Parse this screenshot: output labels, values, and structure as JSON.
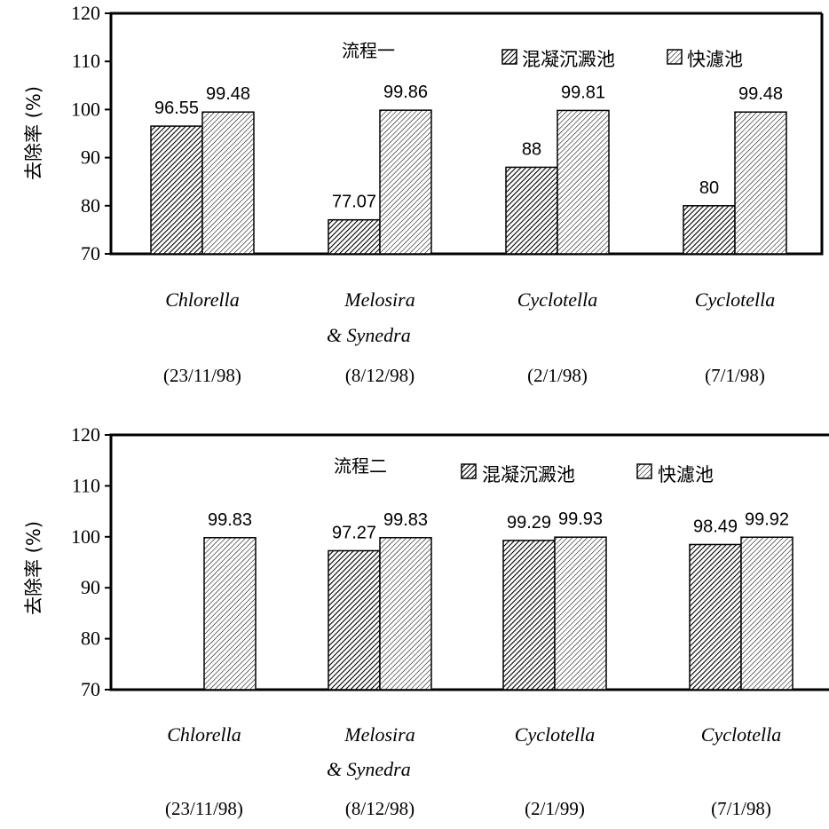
{
  "chart_data": [
    {
      "type": "bar",
      "title": "流程一",
      "ylabel": "去除率 (%)",
      "ylim": [
        70,
        120
      ],
      "yticks": [
        70,
        80,
        90,
        100,
        110,
        120
      ],
      "categories": [
        "Chlorella",
        "Melosira & Synedra",
        "Cyclotella",
        "Cyclotella"
      ],
      "category_lines": [
        [
          "Chlorella"
        ],
        [
          "Melosira",
          "& Synedra"
        ],
        [
          "Cyclotella"
        ],
        [
          "Cyclotella"
        ]
      ],
      "dates": [
        "(23/11/98)",
        "(8/12/98)",
        "(2/1/98)",
        "(7/1/98)"
      ],
      "series": [
        {
          "name": "混凝沉澱池",
          "values": [
            96.55,
            77.07,
            88,
            80
          ],
          "labels": [
            "96.55",
            "77.07",
            "88",
            "80"
          ],
          "hatch": "dense"
        },
        {
          "name": "快濾池",
          "values": [
            99.48,
            99.86,
            99.81,
            99.48
          ],
          "labels": [
            "99.48",
            "99.86",
            "99.81",
            "99.48"
          ],
          "hatch": "light"
        }
      ],
      "legend_position": "top-right",
      "grid": false
    },
    {
      "type": "bar",
      "title": "流程二",
      "ylabel": "去除率 (%)",
      "ylim": [
        70,
        120
      ],
      "yticks": [
        70,
        80,
        90,
        100,
        110,
        120
      ],
      "categories": [
        "Chlorella",
        "Melosira & Synedra",
        "Cyclotella",
        "Cyclotella"
      ],
      "category_lines": [
        [
          "Chlorella"
        ],
        [
          "Melosira",
          "& Synedra"
        ],
        [
          "Cyclotella"
        ],
        [
          "Cyclotella"
        ]
      ],
      "dates": [
        "(23/11/98)",
        "(8/12/98)",
        "(2/1/99)",
        "(7/1/98)"
      ],
      "series": [
        {
          "name": "混凝沉澱池",
          "values": [
            null,
            97.27,
            99.29,
            98.49
          ],
          "labels": [
            "",
            "97.27",
            "99.29",
            "98.49"
          ],
          "hatch": "dense"
        },
        {
          "name": "快濾池",
          "values": [
            99.83,
            99.83,
            99.93,
            99.92
          ],
          "labels": [
            "99.83",
            "99.83",
            "99.93",
            "99.92"
          ],
          "hatch": "light"
        }
      ],
      "legend_position": "top-right",
      "grid": false
    }
  ]
}
